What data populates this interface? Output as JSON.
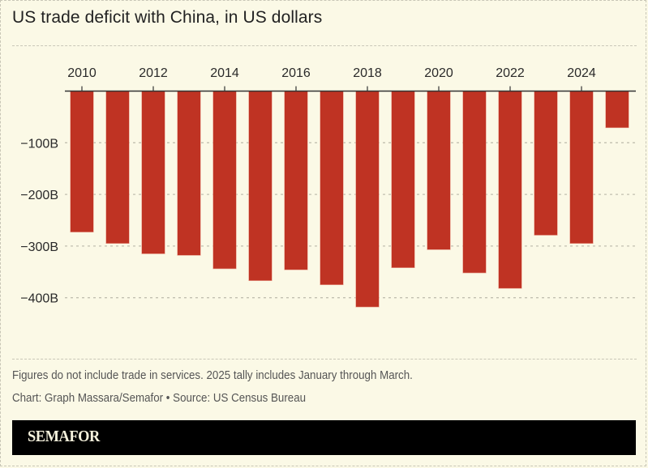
{
  "header": {
    "title": "US trade deficit with China, in US dollars"
  },
  "footer": {
    "note": "Figures do not include trade in services. 2025 tally includes January through March.",
    "credit": "Chart: Graph Massara/Semafor • Source: US Census Bureau",
    "brand": "SEMAFOR"
  },
  "colors": {
    "bar": "#bf3323",
    "background": "#fbf9e6",
    "text": "#2a2a2a"
  },
  "chart_data": {
    "type": "bar",
    "title": "US trade deficit with China, in US dollars",
    "xlabel": "",
    "ylabel": "",
    "categories": [
      "2010",
      "2011",
      "2012",
      "2013",
      "2014",
      "2015",
      "2016",
      "2017",
      "2018",
      "2019",
      "2020",
      "2021",
      "2022",
      "2023",
      "2024",
      "2025"
    ],
    "values": [
      -273,
      -295,
      -315,
      -318,
      -344,
      -367,
      -346,
      -375,
      -418,
      -342,
      -307,
      -352,
      -382,
      -279,
      -295,
      -71
    ],
    "units": "billions USD",
    "ylim": [
      -430,
      0
    ],
    "yticks": [
      0,
      -100,
      -200,
      -300,
      -400
    ],
    "ytick_labels": [
      "",
      "−100B",
      "−200B",
      "−300B",
      "−400B"
    ],
    "xtick_labels": [
      "2010",
      "2012",
      "2014",
      "2016",
      "2018",
      "2020",
      "2022",
      "2024"
    ],
    "xaxis_position": "top",
    "grid": true,
    "legend": "none"
  }
}
